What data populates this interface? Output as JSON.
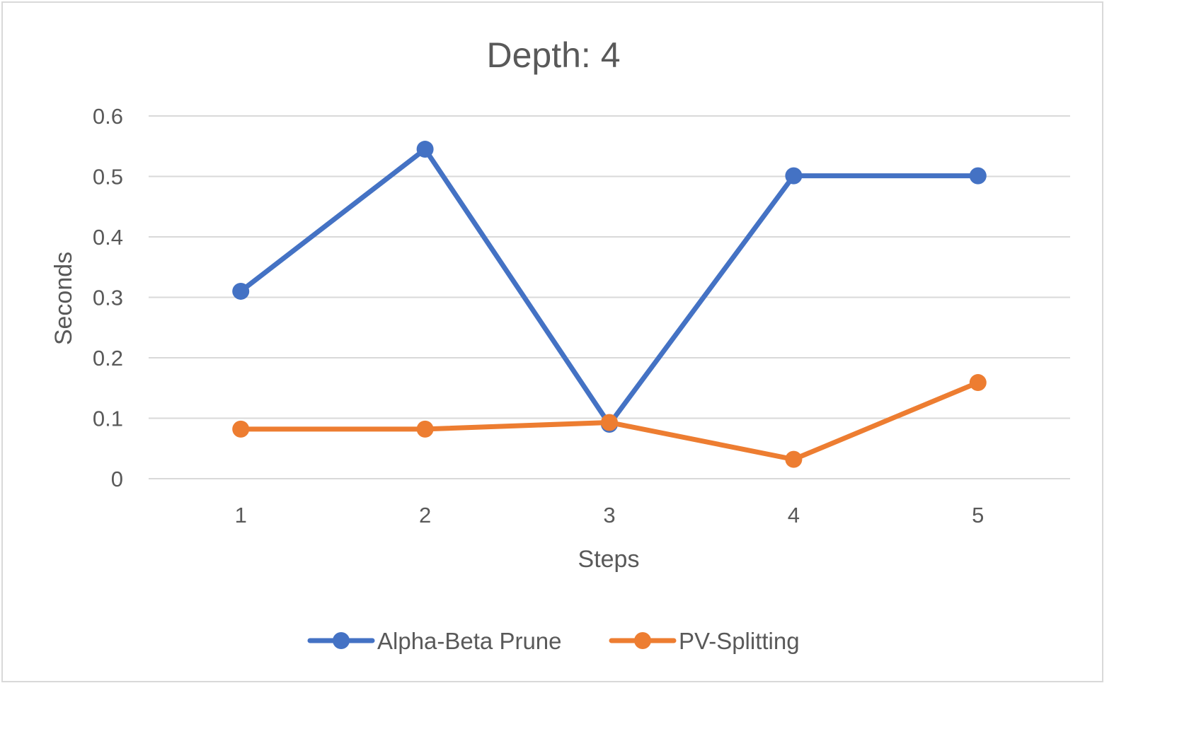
{
  "chart_data": {
    "type": "line",
    "title": "Depth: 4",
    "xlabel": "Steps",
    "ylabel": "Seconds",
    "categories": [
      "1",
      "2",
      "3",
      "4",
      "5"
    ],
    "ylim": [
      0,
      0.6
    ],
    "yticks": [
      "0",
      "0.1",
      "0.2",
      "0.3",
      "0.4",
      "0.5",
      "0.6"
    ],
    "grid": true,
    "legend_position": "bottom",
    "series": [
      {
        "name": "Alpha-Beta Prune",
        "color": "#4472c4",
        "values": [
          0.31,
          0.545,
          0.09,
          0.501,
          0.501
        ]
      },
      {
        "name": "PV-Splitting",
        "color": "#ed7d31",
        "values": [
          0.082,
          0.082,
          0.093,
          0.032,
          0.159
        ]
      }
    ]
  }
}
